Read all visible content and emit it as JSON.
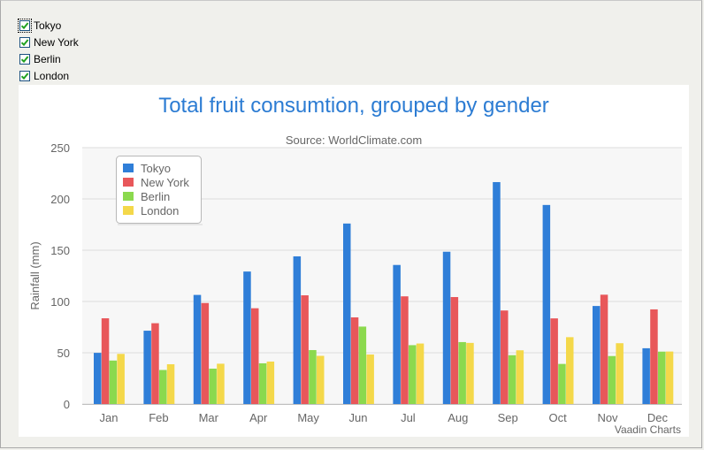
{
  "checkboxes": [
    {
      "label": "Tokyo",
      "checked": true,
      "focused": true
    },
    {
      "label": "New York",
      "checked": true,
      "focused": false
    },
    {
      "label": "Berlin",
      "checked": true,
      "focused": false
    },
    {
      "label": "London",
      "checked": true,
      "focused": false
    }
  ],
  "chart_data": {
    "type": "bar",
    "title": "Total fruit consumtion, grouped by gender",
    "subtitle": "Source: WorldClimate.com",
    "xlabel": "",
    "ylabel": "Rainfall (mm)",
    "ylim": [
      0,
      250
    ],
    "yticks": [
      0,
      50,
      100,
      150,
      200,
      250
    ],
    "grid": true,
    "legend_position": "top-left",
    "credits": "Vaadin Charts",
    "categories": [
      "Jan",
      "Feb",
      "Mar",
      "Apr",
      "May",
      "Jun",
      "Jul",
      "Aug",
      "Sep",
      "Oct",
      "Nov",
      "Dec"
    ],
    "series": [
      {
        "name": "Tokyo",
        "color": "#2f7ed8",
        "values": [
          49.9,
          71.5,
          106.4,
          129.2,
          144.0,
          176.0,
          135.6,
          148.5,
          216.4,
          194.1,
          95.6,
          54.4
        ]
      },
      {
        "name": "New York",
        "color": "#e8575a",
        "values": [
          83.6,
          78.8,
          98.5,
          93.4,
          106.0,
          84.5,
          105.0,
          104.3,
          91.2,
          83.5,
          106.6,
          92.3
        ]
      },
      {
        "name": "Berlin",
        "color": "#8bd94e",
        "values": [
          42.4,
          33.2,
          34.5,
          39.7,
          52.6,
          75.5,
          57.4,
          60.4,
          47.6,
          39.1,
          46.8,
          51.1
        ]
      },
      {
        "name": "London",
        "color": "#f4d84a",
        "values": [
          48.9,
          38.8,
          39.3,
          41.4,
          47.0,
          48.3,
          59.0,
          59.6,
          52.4,
          65.2,
          59.3,
          51.2
        ]
      }
    ]
  },
  "colors": {
    "title": "#2c7cd3",
    "axis_text": "#666666",
    "grid": "#dcdcdc",
    "plot_band": "#f7f7f7"
  }
}
